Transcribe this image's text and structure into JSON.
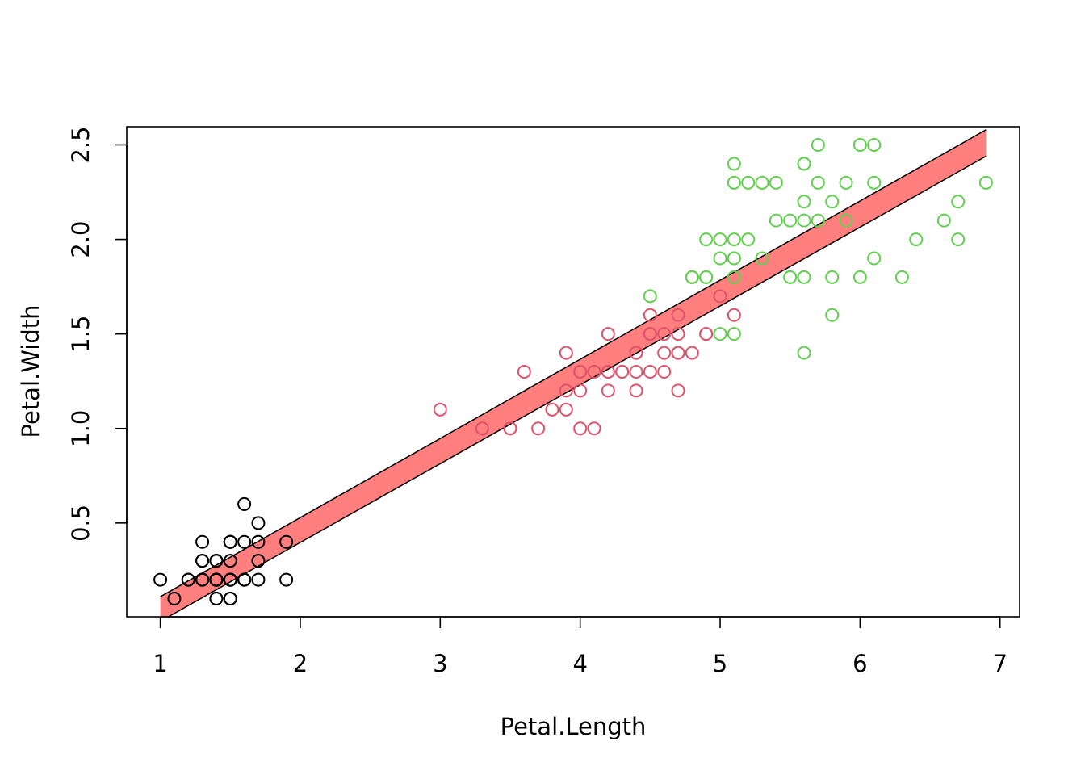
{
  "chart_data": {
    "type": "scatter",
    "title": "",
    "xlabel": "Petal.Length",
    "ylabel": "Petal.Width",
    "xlim": [
      0.76,
      7.14
    ],
    "ylim": [
      0.004,
      2.596
    ],
    "x_ticks": [
      1,
      2,
      3,
      4,
      5,
      6,
      7
    ],
    "y_ticks": [
      0.5,
      1.0,
      1.5,
      2.0,
      2.5
    ],
    "x_tick_labels": [
      "1",
      "2",
      "3",
      "4",
      "5",
      "6",
      "7"
    ],
    "y_tick_labels": [
      "0.5",
      "1.0",
      "1.5",
      "2.0",
      "2.5"
    ],
    "grid": false,
    "legend": "none",
    "series": [
      {
        "color": "#000000",
        "points": [
          [
            1.4,
            0.2
          ],
          [
            1.4,
            0.2
          ],
          [
            1.3,
            0.2
          ],
          [
            1.5,
            0.2
          ],
          [
            1.4,
            0.2
          ],
          [
            1.7,
            0.4
          ],
          [
            1.4,
            0.3
          ],
          [
            1.5,
            0.2
          ],
          [
            1.4,
            0.2
          ],
          [
            1.5,
            0.1
          ],
          [
            1.5,
            0.2
          ],
          [
            1.6,
            0.2
          ],
          [
            1.4,
            0.1
          ],
          [
            1.1,
            0.1
          ],
          [
            1.2,
            0.2
          ],
          [
            1.5,
            0.4
          ],
          [
            1.3,
            0.4
          ],
          [
            1.4,
            0.3
          ],
          [
            1.7,
            0.3
          ],
          [
            1.5,
            0.3
          ],
          [
            1.7,
            0.2
          ],
          [
            1.5,
            0.4
          ],
          [
            1.0,
            0.2
          ],
          [
            1.7,
            0.5
          ],
          [
            1.9,
            0.2
          ],
          [
            1.6,
            0.2
          ],
          [
            1.6,
            0.4
          ],
          [
            1.5,
            0.2
          ],
          [
            1.4,
            0.2
          ],
          [
            1.6,
            0.2
          ],
          [
            1.6,
            0.2
          ],
          [
            1.5,
            0.4
          ],
          [
            1.5,
            0.1
          ],
          [
            1.4,
            0.2
          ],
          [
            1.5,
            0.2
          ],
          [
            1.2,
            0.2
          ],
          [
            1.3,
            0.2
          ],
          [
            1.4,
            0.1
          ],
          [
            1.3,
            0.2
          ],
          [
            1.5,
            0.2
          ],
          [
            1.3,
            0.3
          ],
          [
            1.3,
            0.3
          ],
          [
            1.3,
            0.2
          ],
          [
            1.6,
            0.6
          ],
          [
            1.9,
            0.4
          ],
          [
            1.4,
            0.3
          ],
          [
            1.6,
            0.2
          ],
          [
            1.4,
            0.2
          ],
          [
            1.5,
            0.2
          ],
          [
            1.4,
            0.2
          ]
        ]
      },
      {
        "color": "#DF536B",
        "points": [
          [
            4.7,
            1.4
          ],
          [
            4.5,
            1.5
          ],
          [
            4.9,
            1.5
          ],
          [
            4.0,
            1.3
          ],
          [
            4.6,
            1.5
          ],
          [
            4.5,
            1.3
          ],
          [
            4.7,
            1.6
          ],
          [
            3.3,
            1.0
          ],
          [
            4.6,
            1.3
          ],
          [
            3.9,
            1.4
          ],
          [
            3.5,
            1.0
          ],
          [
            4.2,
            1.5
          ],
          [
            4.0,
            1.0
          ],
          [
            4.7,
            1.4
          ],
          [
            3.6,
            1.3
          ],
          [
            4.4,
            1.4
          ],
          [
            4.5,
            1.5
          ],
          [
            4.1,
            1.0
          ],
          [
            4.5,
            1.5
          ],
          [
            3.9,
            1.1
          ],
          [
            4.8,
            1.8
          ],
          [
            4.0,
            1.3
          ],
          [
            4.9,
            1.5
          ],
          [
            4.7,
            1.2
          ],
          [
            4.3,
            1.3
          ],
          [
            4.4,
            1.4
          ],
          [
            4.8,
            1.4
          ],
          [
            5.0,
            1.7
          ],
          [
            4.5,
            1.5
          ],
          [
            3.5,
            1.0
          ],
          [
            3.8,
            1.1
          ],
          [
            3.7,
            1.0
          ],
          [
            3.9,
            1.2
          ],
          [
            5.1,
            1.6
          ],
          [
            4.5,
            1.5
          ],
          [
            4.5,
            1.6
          ],
          [
            4.7,
            1.5
          ],
          [
            4.4,
            1.3
          ],
          [
            4.1,
            1.3
          ],
          [
            4.0,
            1.3
          ],
          [
            4.4,
            1.2
          ],
          [
            4.6,
            1.4
          ],
          [
            4.0,
            1.2
          ],
          [
            3.3,
            1.0
          ],
          [
            4.2,
            1.3
          ],
          [
            4.2,
            1.2
          ],
          [
            4.2,
            1.3
          ],
          [
            4.3,
            1.3
          ],
          [
            3.0,
            1.1
          ],
          [
            4.1,
            1.3
          ]
        ]
      },
      {
        "color": "#61D04F",
        "points": [
          [
            6.0,
            2.5
          ],
          [
            5.1,
            1.9
          ],
          [
            5.9,
            2.1
          ],
          [
            5.6,
            1.8
          ],
          [
            5.8,
            2.2
          ],
          [
            6.6,
            2.1
          ],
          [
            4.5,
            1.7
          ],
          [
            6.3,
            1.8
          ],
          [
            5.8,
            1.8
          ],
          [
            6.1,
            2.5
          ],
          [
            5.1,
            2.0
          ],
          [
            5.3,
            1.9
          ],
          [
            5.5,
            2.1
          ],
          [
            5.0,
            2.0
          ],
          [
            5.1,
            2.4
          ],
          [
            5.3,
            2.3
          ],
          [
            5.5,
            1.8
          ],
          [
            6.7,
            2.2
          ],
          [
            6.9,
            2.3
          ],
          [
            5.0,
            1.5
          ],
          [
            5.7,
            2.3
          ],
          [
            4.9,
            2.0
          ],
          [
            6.7,
            2.0
          ],
          [
            4.9,
            1.8
          ],
          [
            5.7,
            2.1
          ],
          [
            6.0,
            1.8
          ],
          [
            4.8,
            1.8
          ],
          [
            4.9,
            1.8
          ],
          [
            5.6,
            2.1
          ],
          [
            5.8,
            1.6
          ],
          [
            6.1,
            1.9
          ],
          [
            6.4,
            2.0
          ],
          [
            5.6,
            2.2
          ],
          [
            5.1,
            1.5
          ],
          [
            5.6,
            1.4
          ],
          [
            6.1,
            2.3
          ],
          [
            5.6,
            2.4
          ],
          [
            5.5,
            1.8
          ],
          [
            4.8,
            1.8
          ],
          [
            5.4,
            2.1
          ],
          [
            5.6,
            2.4
          ],
          [
            5.1,
            2.3
          ],
          [
            5.1,
            1.9
          ],
          [
            5.9,
            2.3
          ],
          [
            5.7,
            2.5
          ],
          [
            5.2,
            2.3
          ],
          [
            5.0,
            1.9
          ],
          [
            5.2,
            2.0
          ],
          [
            5.4,
            2.3
          ],
          [
            5.1,
            1.8
          ]
        ]
      }
    ],
    "band": {
      "fill": "#FF000080",
      "x": [
        1.0,
        6.9
      ],
      "upper": [
        0.11,
        2.58
      ],
      "lower": [
        -0.02,
        2.44
      ]
    }
  }
}
